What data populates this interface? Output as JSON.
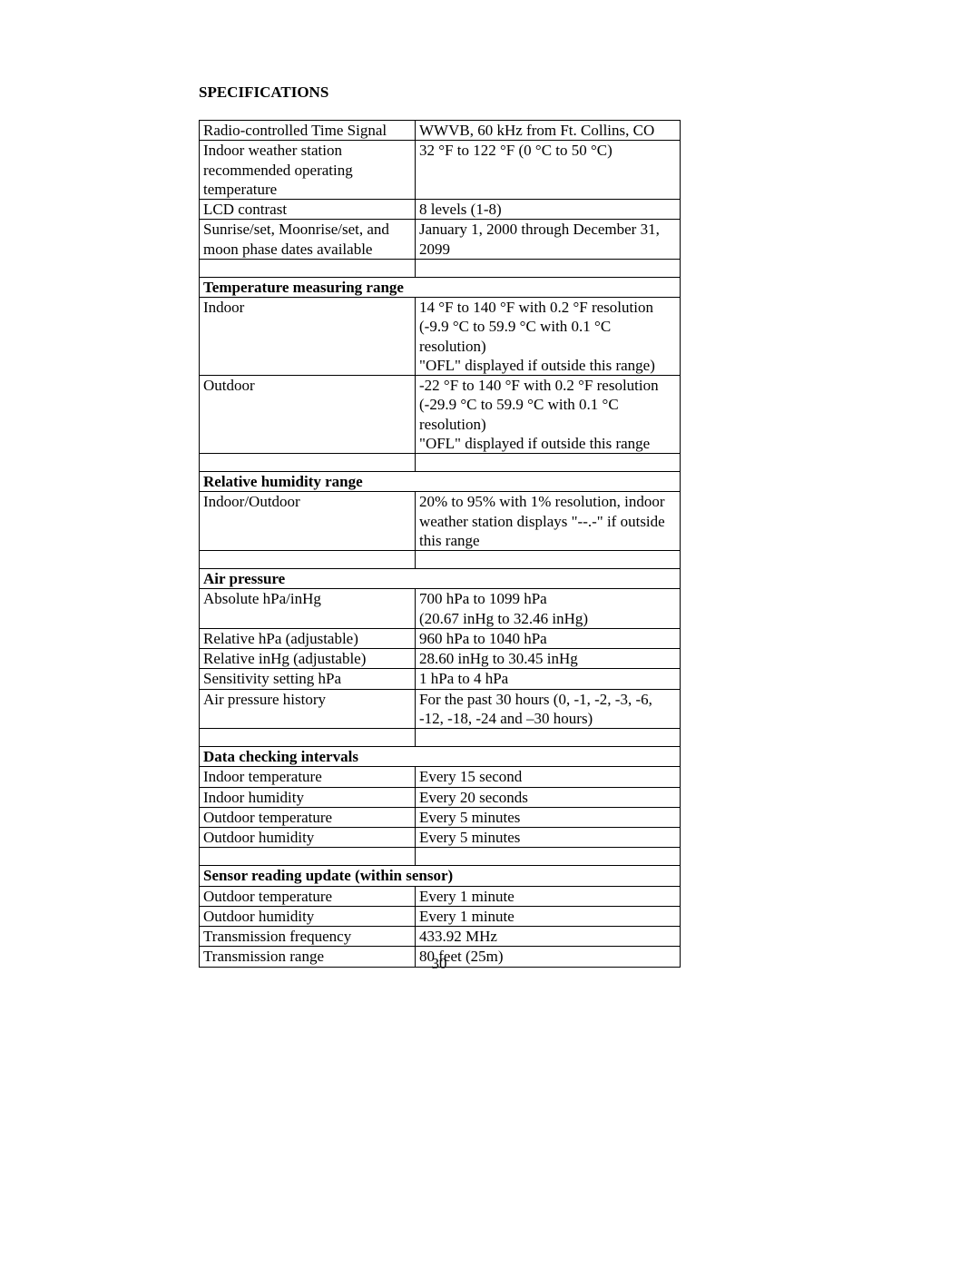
{
  "title": "SPECIFICATIONS",
  "page_number": "30",
  "sections": [
    {
      "header": null,
      "rows": [
        {
          "label": "Radio-controlled Time Signal",
          "value": "WWVB, 60 kHz from Ft. Collins, CO"
        },
        {
          "label": "Indoor weather station recommended operating temperature",
          "value": "32 °F to 122 °F (0 °C to 50 °C)"
        },
        {
          "label": "LCD contrast",
          "value": "8 levels (1-8)"
        },
        {
          "label": "Sunrise/set, Moonrise/set, and moon phase dates available",
          "value": "January 1, 2000 through December 31, 2099"
        }
      ]
    },
    {
      "header": "Temperature measuring range",
      "rows": [
        {
          "label": "Indoor",
          "value": "14 °F to 140 °F with 0.2 °F resolution\n(-9.9 °C to 59.9 °C with 0.1 °C resolution)\n\"OFL\" displayed if outside this range)\n "
        },
        {
          "label": "Outdoor",
          "value": "-22 °F to 140 °F with 0.2 °F resolution\n(-29.9 °C to 59.9 °C with 0.1 °C resolution)\n\"OFL\" displayed if outside this range"
        }
      ]
    },
    {
      "header": "Relative humidity range",
      "rows": [
        {
          "label": "Indoor/Outdoor",
          "value": "20% to 95% with 1% resolution, indoor weather station displays \"--.-\" if outside this range"
        }
      ]
    },
    {
      "header": "Air pressure",
      "rows": [
        {
          "label": "Absolute hPa/inHg",
          "value": "700 hPa to 1099 hPa\n(20.67 inHg to 32.46 inHg)"
        },
        {
          "label": "Relative hPa (adjustable)",
          "value": "960 hPa to 1040 hPa"
        },
        {
          "label": "Relative inHg (adjustable)",
          "value": "28.60 inHg to 30.45 inHg"
        },
        {
          "label": "Sensitivity setting hPa",
          "value": "1 hPa to 4 hPa"
        },
        {
          "label": "Air pressure history",
          "value": "For the past 30 hours (0, -1, -2, -3, -6, -12, -18, -24 and –30 hours)"
        }
      ]
    },
    {
      "header": "Data checking intervals",
      "rows": [
        {
          "label": "Indoor temperature",
          "value": "Every 15 second"
        },
        {
          "label": "Indoor humidity",
          "value": "Every 20 seconds"
        },
        {
          "label": "Outdoor temperature",
          "value": "Every 5 minutes"
        },
        {
          "label": "Outdoor humidity",
          "value": "Every 5 minutes"
        }
      ]
    },
    {
      "header": "Sensor reading update (within sensor)",
      "rows": [
        {
          "label": "Outdoor temperature",
          "value": "Every 1 minute"
        },
        {
          "label": "Outdoor humidity",
          "value": "Every 1 minute"
        },
        {
          "label": "Transmission frequency",
          "value": "433.92 MHz"
        },
        {
          "label": "Transmission range",
          "value": "80 feet (25m)"
        }
      ]
    }
  ]
}
